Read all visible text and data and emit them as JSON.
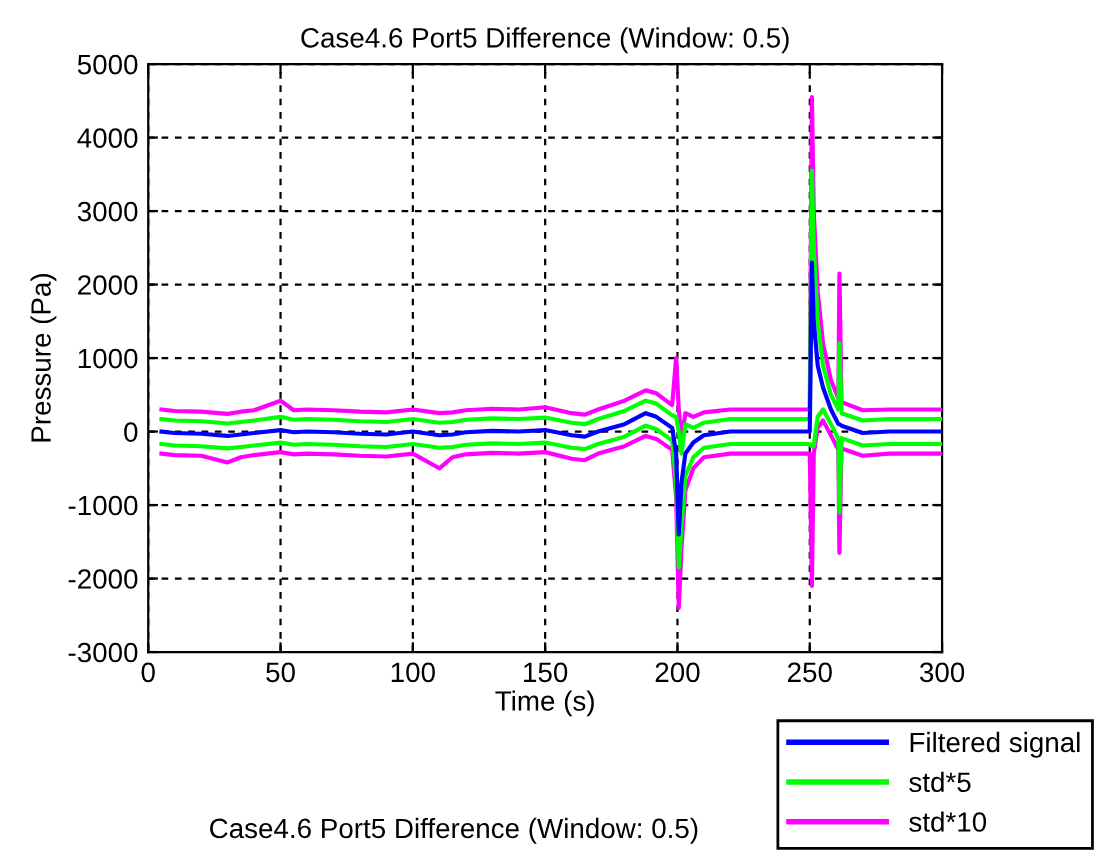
{
  "chart_data": {
    "type": "line",
    "title": "Case4.6 Port5 Difference (Window: 0.5)",
    "xlabel": "Time (s)",
    "ylabel": "Pressure (Pa)",
    "x": [
      5,
      10,
      20,
      30,
      35,
      40,
      50,
      55,
      60,
      70,
      80,
      90,
      100,
      110,
      115,
      120,
      130,
      140,
      150,
      160,
      165,
      170,
      180,
      188,
      192,
      198,
      199.5,
      200.5,
      201.5,
      203,
      206,
      210,
      220,
      240,
      250,
      250.8,
      251.5,
      253,
      255,
      258,
      260.8,
      261.2,
      262,
      270,
      280,
      290,
      300
    ],
    "series": [
      {
        "name": "Filtered signal",
        "type": "line",
        "color": "#0000ff",
        "values": [
          0,
          -20,
          -30,
          -60,
          -40,
          -20,
          20,
          -10,
          0,
          -10,
          -30,
          -40,
          0,
          -50,
          -40,
          -10,
          10,
          0,
          20,
          -50,
          -70,
          0,
          100,
          250,
          200,
          50,
          -300,
          -1400,
          -700,
          -300,
          -150,
          -50,
          0,
          0,
          0,
          2300,
          1500,
          900,
          600,
          300,
          100,
          100,
          80,
          -20,
          0,
          0,
          0
        ]
      },
      {
        "name": "std*5",
        "color": "#00ff00",
        "values": [
          170,
          150,
          140,
          110,
          130,
          150,
          200,
          160,
          170,
          160,
          140,
          130,
          170,
          120,
          130,
          160,
          180,
          170,
          190,
          120,
          100,
          170,
          280,
          420,
          380,
          220,
          200,
          0,
          -300,
          100,
          50,
          120,
          170,
          170,
          170,
          3550,
          2500,
          1500,
          900,
          500,
          300,
          1200,
          250,
          150,
          170,
          170,
          170
        ]
      },
      {
        "name": "std*10",
        "color": "#ff00ff",
        "values": [
          300,
          280,
          270,
          240,
          270,
          290,
          420,
          290,
          300,
          290,
          270,
          260,
          300,
          250,
          260,
          290,
          310,
          300,
          330,
          250,
          230,
          300,
          420,
          560,
          520,
          360,
          1000,
          300,
          -100,
          250,
          200,
          260,
          300,
          300,
          300,
          4550,
          3000,
          1900,
          1200,
          700,
          450,
          2150,
          400,
          290,
          300,
          300,
          300
        ]
      },
      {
        "color": "#00ff00",
        "values": [
          -170,
          -190,
          -200,
          -230,
          -210,
          -190,
          -150,
          -180,
          -170,
          -180,
          -200,
          -210,
          -170,
          -220,
          -210,
          -180,
          -160,
          -170,
          -150,
          -220,
          -240,
          -170,
          -70,
          80,
          30,
          -120,
          -700,
          -1850,
          -1300,
          -600,
          -350,
          -220,
          -170,
          -170,
          -170,
          -200,
          -200,
          200,
          300,
          100,
          -100,
          -1100,
          -90,
          -190,
          -170,
          -170,
          -170
        ]
      },
      {
        "color": "#ff00ff",
        "values": [
          -300,
          -320,
          -330,
          -420,
          -350,
          -320,
          -280,
          -310,
          -300,
          -310,
          -330,
          -340,
          -300,
          -500,
          -350,
          -310,
          -290,
          -300,
          -280,
          -370,
          -390,
          -300,
          -200,
          -60,
          -100,
          -250,
          -900,
          -2400,
          -1600,
          -800,
          -500,
          -350,
          -300,
          -300,
          -300,
          -2100,
          -300,
          50,
          150,
          -50,
          -250,
          -1650,
          -230,
          -330,
          -300,
          -300,
          -300
        ]
      }
    ],
    "xlim": [
      0,
      300
    ],
    "xticks": [
      0,
      50,
      100,
      150,
      200,
      250,
      300
    ],
    "ylim": [
      -3000,
      5000
    ],
    "yticks": [
      -3000,
      -2000,
      -1000,
      0,
      1000,
      2000,
      3000,
      4000,
      5000
    ],
    "grid": true,
    "legend": "bottom right",
    "annotations": [
      "Case4.6 Port5 Difference (Window: 0.5)"
    ]
  }
}
